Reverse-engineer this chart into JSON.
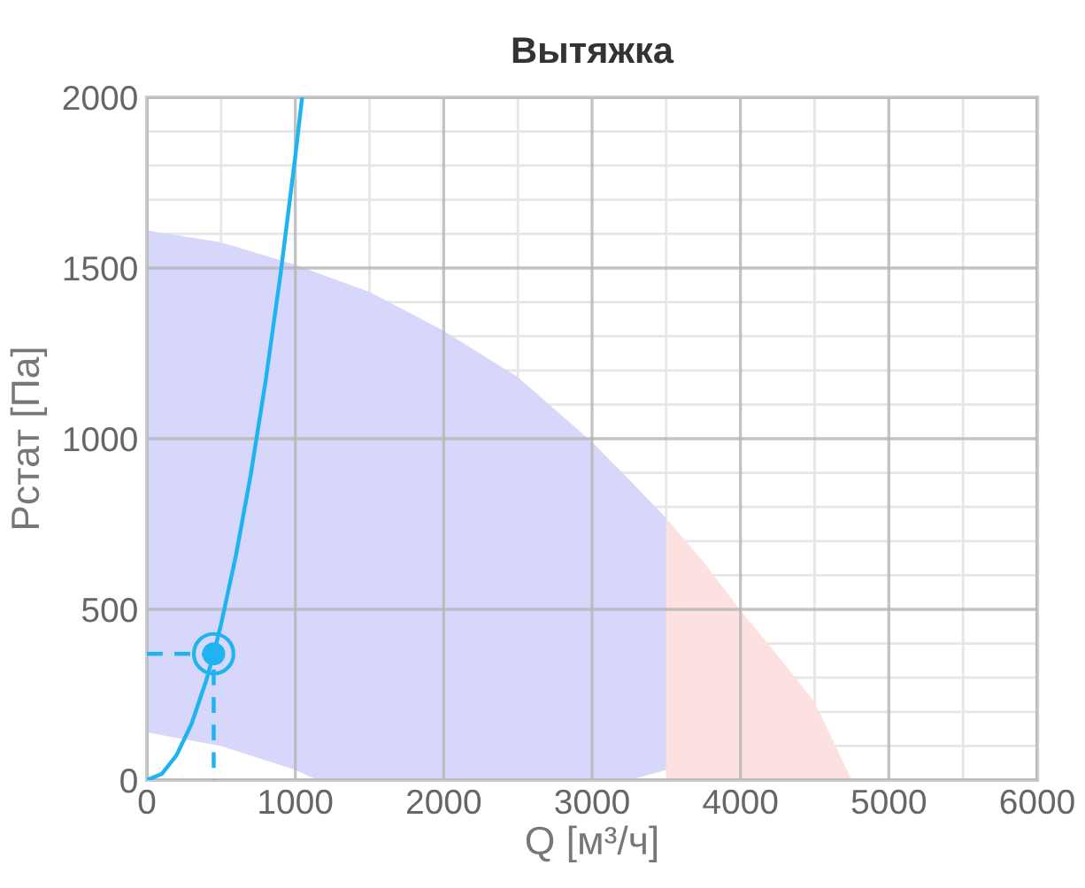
{
  "chart_data": {
    "type": "area",
    "title": "Вытяжка",
    "xlabel": "Q [м³/ч]",
    "ylabel": "Pстат [Па]",
    "xlim": [
      0,
      6000
    ],
    "ylim": [
      0,
      2000
    ],
    "xticks": [
      0,
      {
        "value": 500,
        "label": null
      },
      1000,
      {
        "value": 1500,
        "label": null
      },
      2000,
      {
        "value": 2500,
        "label": null
      },
      3000,
      {
        "value": 3500,
        "label": null
      },
      4000,
      {
        "value": 4500,
        "label": null
      },
      5000,
      {
        "value": 5500,
        "label": null
      },
      6000
    ],
    "yticks": [
      0,
      {
        "value": 100,
        "label": null
      },
      {
        "value": 200,
        "label": null
      },
      {
        "value": 300,
        "label": null
      },
      {
        "value": 400,
        "label": null
      },
      500,
      {
        "value": 600,
        "label": null
      },
      {
        "value": 700,
        "label": null
      },
      {
        "value": 800,
        "label": null
      },
      {
        "value": 900,
        "label": null
      },
      1000,
      {
        "value": 1100,
        "label": null
      },
      {
        "value": 1200,
        "label": null
      },
      {
        "value": 1300,
        "label": null
      },
      {
        "value": 1400,
        "label": null
      },
      1500,
      {
        "value": 1600,
        "label": null
      },
      {
        "value": 1700,
        "label": null
      },
      {
        "value": 1800,
        "label": null
      },
      {
        "value": 1900,
        "label": null
      },
      2000
    ],
    "grid": true,
    "legend": false,
    "series": [
      {
        "color": "#d7d7fb",
        "x": [
          0,
          500,
          1000,
          1150,
          1500,
          2000,
          2500,
          3000,
          3250,
          3500
        ],
        "values": [
          1610,
          1575,
          1510,
          1485,
          1430,
          1316,
          1180,
          990,
          880,
          767
        ]
      },
      {
        "color": "#ffffff",
        "x": [
          0,
          500,
          1000,
          1150
        ],
        "values": [
          140,
          100,
          30,
          0
        ]
      },
      {
        "color": "#ffffff",
        "x": [
          3250,
          3500
        ],
        "values": [
          0,
          30
        ]
      },
      {
        "color": "#fde0e0",
        "x": [
          3500,
          3750,
          4000,
          4250,
          4500,
          4750
        ],
        "values": [
          767,
          640,
          497,
          365,
          228,
          0
        ]
      },
      {
        "type": "line",
        "color": "#1fb4ef",
        "x": [
          0,
          100,
          200,
          300,
          400,
          450,
          500,
          600,
          700,
          800,
          900,
          1000,
          1046
        ],
        "values": [
          0,
          18,
          73,
          164,
          292,
          370,
          457,
          658,
          895,
          1169,
          1480,
          1827,
          2000
        ],
        "line_style": "solid"
      },
      {
        "type": "line",
        "color": "#1fb4ef",
        "x": [
          0,
          450,
          450
        ],
        "values": [
          370,
          370,
          0
        ],
        "line_style": "dashed"
      },
      {
        "type": "scatter",
        "color": "#1fb4ef",
        "x": [
          450
        ],
        "values": [
          370
        ],
        "marker": "circle"
      }
    ]
  }
}
